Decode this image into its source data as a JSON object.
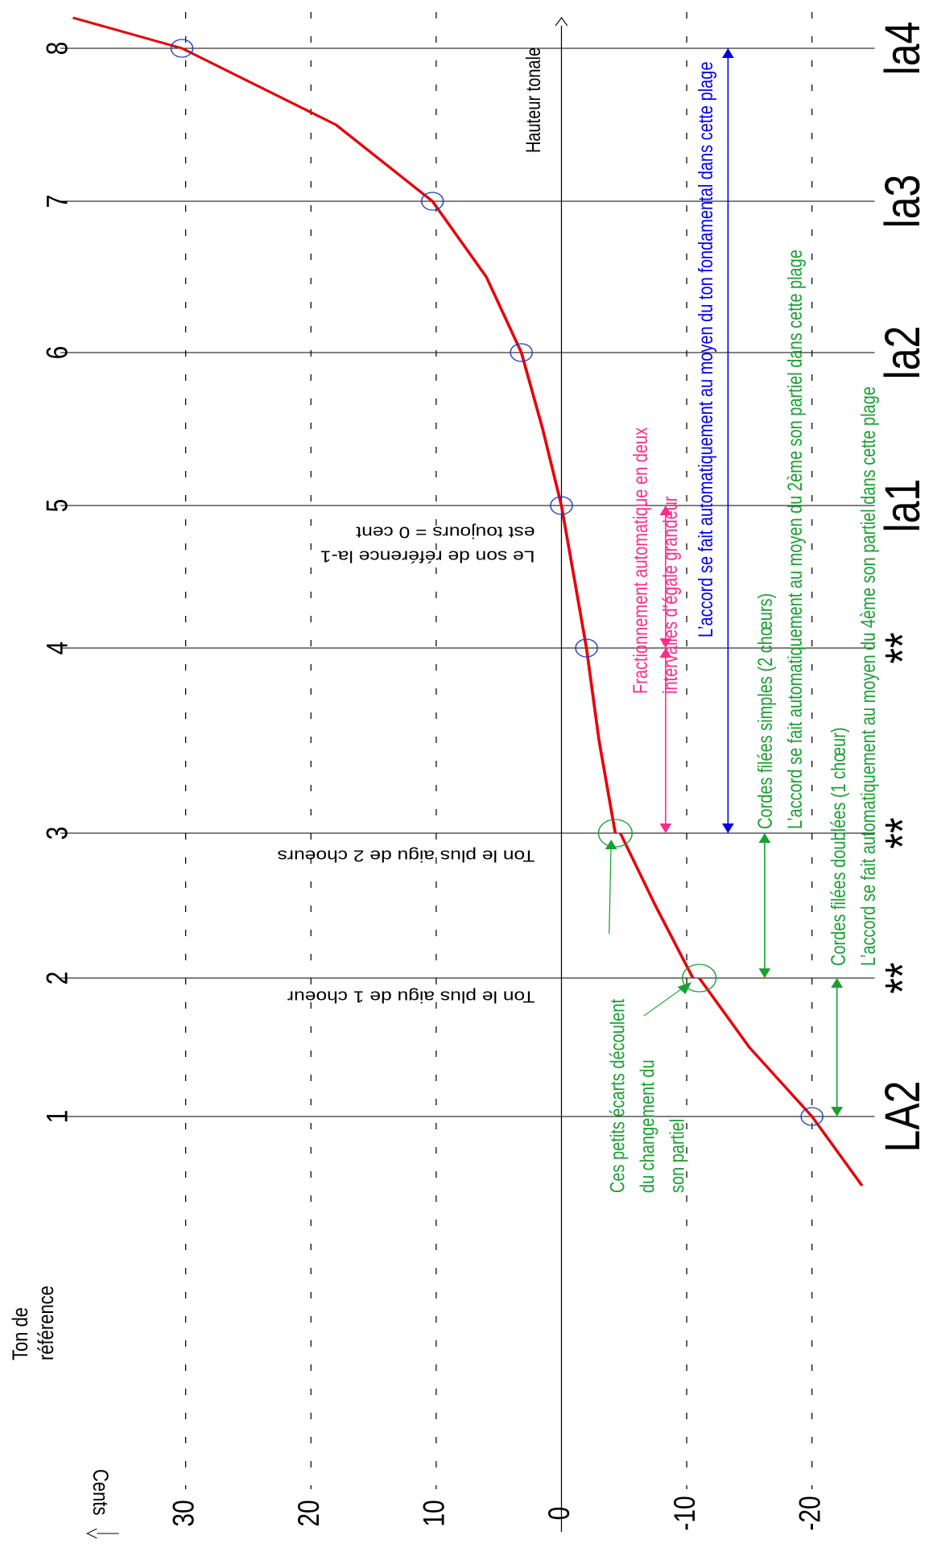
{
  "chart_data": {
    "type": "line",
    "x_label": [
      "Ton de",
      "référence"
    ],
    "y_label": "Cents",
    "axis_label": "Hauteur tonale",
    "xlim": [
      -2,
      8.2
    ],
    "xticks": [
      1,
      2,
      3,
      4,
      5,
      6,
      7,
      8
    ],
    "note_labels": [
      "LA2",
      "**",
      "**",
      "**",
      "la1",
      "la2",
      "la3",
      "la4"
    ],
    "ylim": [
      -25,
      40
    ],
    "yticks": [
      -20,
      -10,
      0,
      10,
      20,
      30
    ],
    "grid": true,
    "series": [
      {
        "color": "#e8000b",
        "x": [
          0.5,
          1,
          1.5,
          2,
          2,
          2,
          2.5,
          3,
          3,
          3,
          3.5,
          4,
          4.5,
          5,
          5.5,
          6,
          6.5,
          7,
          7.5,
          8,
          8.2
        ],
        "values": [
          -24,
          -20,
          -15,
          -11,
          null,
          -10.5,
          -7.5,
          -4.7,
          null,
          -4.3,
          -3,
          -2,
          -1,
          0,
          1.5,
          3.2,
          6,
          10.3,
          18,
          30.3,
          39
        ]
      },
      {
        "color": "#1f3fbf",
        "markers": true,
        "x": [
          1,
          2,
          3,
          4,
          5,
          6,
          7,
          8
        ],
        "values": [
          -20,
          -11,
          -4.3,
          -2,
          0,
          3.2,
          10.3,
          30.3
        ],
        "marker_colors": [
          "#1f3fbf",
          "#18a030",
          "#18a030",
          "#1f3fbf",
          "#1f3fbf",
          "#1f3fbf",
          "#1f3fbf",
          "#1f3fbf"
        ]
      }
    ],
    "ranges": [
      {
        "from": 3,
        "to": 4,
        "color": "#ff2a8a"
      },
      {
        "from": 4,
        "to": 5,
        "color": "#ff2a8a"
      },
      {
        "from": 3,
        "to": 8,
        "color": "#0000ee"
      },
      {
        "from": 2,
        "to": 3,
        "color": "#18a030"
      },
      {
        "from": 1,
        "to": 2,
        "color": "#18a030"
      }
    ],
    "annotations": [
      {
        "lines": [
          "Le son de référence la-1",
          "est toujours = 0 cent"
        ],
        "color": "#000000"
      },
      {
        "lines": [
          "Ton le plus aigu de 2 choeurs"
        ],
        "color": "#000000"
      },
      {
        "lines": [
          "Ton le plus aigu de 1 choeur"
        ],
        "color": "#000000"
      },
      {
        "lines": [
          "Fractionnement automatique en deux",
          "intervalles d’égale grandeur"
        ],
        "color": "#ff2a8a"
      },
      {
        "lines": [
          "L’accord se fait automatiquement au moyen du ton fondamental dans cette plage"
        ],
        "color": "#0000ee"
      },
      {
        "lines": [
          "Cordes filées simples (2 chœurs)",
          "L’accord se fait automatiquement au moyen du 2ème son partiel dans cette plage"
        ],
        "color": "#18a030"
      },
      {
        "lines": [
          "Cordes filées doublées (1 chœur)",
          "L’accord se fait automatiquement au moyen du 4ème son partiel dans cette plage"
        ],
        "color": "#18a030"
      },
      {
        "lines": [
          "Ces petits écarts découlent",
          "du changement du",
          "son partiel"
        ],
        "color": "#18a030"
      }
    ]
  }
}
